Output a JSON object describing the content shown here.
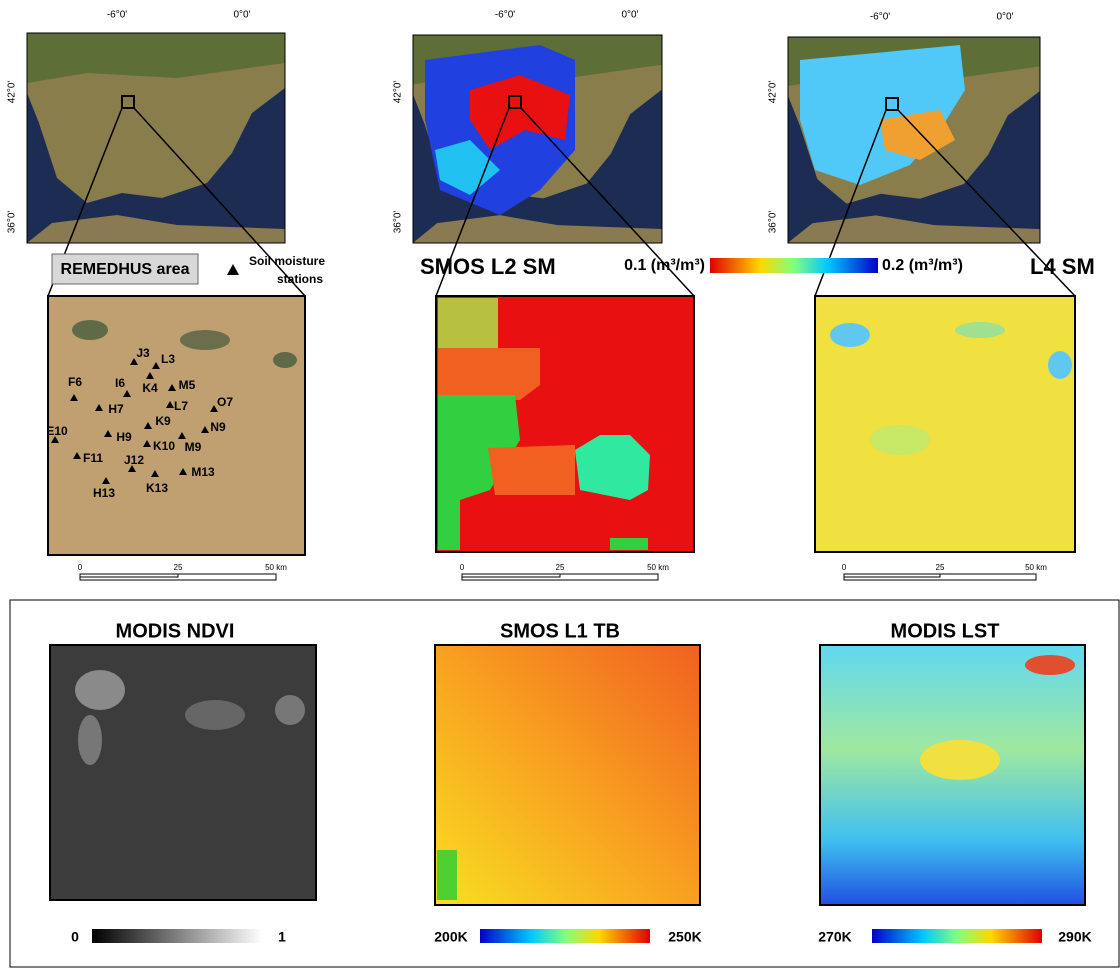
{
  "top_panels": [
    {
      "lon_ticks": [
        "-6°0'",
        "0°0'"
      ],
      "lat_ticks": [
        "42°0'",
        "36°0'"
      ],
      "scale": [
        "0",
        "25",
        "50 km"
      ]
    },
    {
      "lon_ticks": [
        "-6°0'",
        "0°0'"
      ],
      "lat_ticks": [
        "42°0'",
        "36°0'"
      ],
      "scale": [
        "0",
        "25",
        "50 km"
      ]
    },
    {
      "lon_ticks": [
        "-6°0'",
        "0°0'"
      ],
      "lat_ticks": [
        "42°0'",
        "36°0'"
      ],
      "scale": [
        "0",
        "25",
        "50 km"
      ]
    }
  ],
  "remedhus_label": "REMEDHUS area",
  "stations_legend": [
    "Soil moisture",
    "stations"
  ],
  "stations": [
    "J3",
    "L3",
    "F6",
    "I6",
    "K4",
    "M5",
    "H7",
    "L7",
    "O7",
    "K9",
    "E10",
    "H9",
    "K10",
    "M9",
    "N9",
    "F11",
    "J12",
    "M13",
    "H13",
    "K13"
  ],
  "smos_l2_label": "SMOS L2 SM",
  "colorbar_min": "0.1 (m³/m³)",
  "colorbar_max": "0.2 (m³/m³)",
  "l4_label": "L4 SM",
  "bottom_panels": [
    {
      "title": "MODIS NDVI",
      "min": "0",
      "max": "1"
    },
    {
      "title": "SMOS L1 TB",
      "min": "200K",
      "max": "250K"
    },
    {
      "title": "MODIS LST",
      "min": "270K",
      "max": "290K"
    }
  ]
}
